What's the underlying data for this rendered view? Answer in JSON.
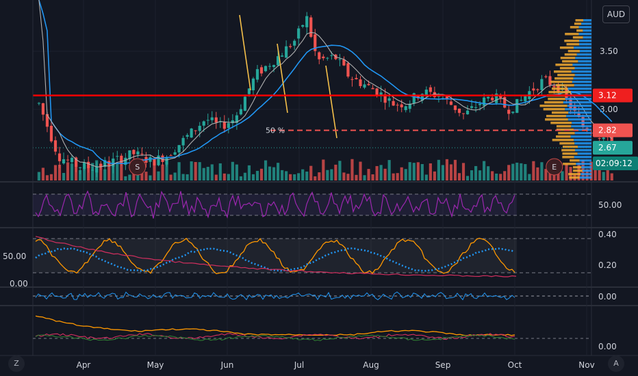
{
  "currency": "AUD",
  "corner_left": "Z",
  "corner_right": "A",
  "ref_label": "50 %",
  "event_markers": [
    {
      "id": "split",
      "text": "S",
      "month_pos": 0.75
    },
    {
      "id": "earnings",
      "text": "E",
      "month_pos": 6.55
    }
  ],
  "badges": {
    "resistance": "3.12",
    "dashed": "2.82",
    "last": "2.67",
    "timer": "02:09:12"
  },
  "colors": {
    "up": "#26a69a",
    "down": "#ef5350",
    "resistance": "#ff0000",
    "ma_blue": "#2196f3",
    "ma_grey": "#b0b0b0",
    "rsi": "#9c27b0",
    "orange": "#ff9800",
    "profile_up": "#2196f3",
    "profile_down": "#f0a830"
  },
  "chart_data": {
    "type": "candlestick",
    "x_ticks": [
      "Apr",
      "May",
      "Jun",
      "Jul",
      "Aug",
      "Sep",
      "Oct",
      "Nov"
    ],
    "price_axis": {
      "ticks": [
        "3.50",
        "3.00"
      ],
      "tick_values": [
        3.5,
        3.0
      ],
      "ylim": [
        2.4,
        3.9
      ]
    },
    "horizontal_levels": [
      {
        "name": "resistance",
        "value": 3.12,
        "style": "solid"
      },
      {
        "name": "retracement-50",
        "value": 2.82,
        "style": "dashed"
      },
      {
        "name": "last-price",
        "value": 2.67,
        "style": "dotted"
      }
    ],
    "price_path": [
      [
        -0.65,
        3.1
      ],
      [
        -0.5,
        2.85
      ],
      [
        -0.35,
        2.6
      ],
      [
        -0.1,
        2.52
      ],
      [
        0.1,
        2.5
      ],
      [
        0.4,
        2.55
      ],
      [
        0.7,
        2.62
      ],
      [
        0.95,
        2.55
      ],
      [
        1.15,
        2.6
      ],
      [
        1.4,
        2.74
      ],
      [
        1.7,
        2.92
      ],
      [
        1.9,
        2.85
      ],
      [
        2.1,
        2.92
      ],
      [
        2.4,
        3.3
      ],
      [
        2.7,
        3.45
      ],
      [
        2.95,
        3.6
      ],
      [
        3.1,
        3.8
      ],
      [
        3.25,
        3.42
      ],
      [
        3.5,
        3.45
      ],
      [
        3.7,
        3.28
      ],
      [
        3.95,
        3.2
      ],
      [
        4.1,
        3.15
      ],
      [
        4.3,
        3.05
      ],
      [
        4.5,
        3.05
      ],
      [
        4.7,
        3.15
      ],
      [
        4.95,
        3.12
      ],
      [
        5.1,
        3.05
      ],
      [
        5.3,
        2.95
      ],
      [
        5.5,
        3.05
      ],
      [
        5.7,
        3.12
      ],
      [
        5.9,
        3.0
      ],
      [
        6.05,
        3.05
      ],
      [
        6.2,
        3.15
      ],
      [
        6.4,
        3.25
      ],
      [
        6.6,
        3.2
      ],
      [
        6.75,
        3.05
      ],
      [
        6.95,
        2.85
      ],
      [
        7.1,
        2.82
      ],
      [
        7.25,
        2.75
      ],
      [
        7.35,
        2.68
      ]
    ],
    "rsi": {
      "ticks": [
        "50.00"
      ],
      "tick_values": [
        50
      ],
      "upper": 70,
      "lower": 30
    },
    "oscillator_left": {
      "ticks": [
        "50.00",
        "0.00"
      ],
      "tick_values": [
        50,
        0
      ]
    },
    "oscillator_right": {
      "ticks": [
        "0.40",
        "0.20"
      ],
      "tick_values": [
        0.4,
        0.2
      ]
    },
    "macd": {
      "ticks": [
        "0.00"
      ],
      "tick_values": [
        0
      ]
    },
    "bottom": {
      "ticks": [
        "0.00"
      ],
      "tick_values": [
        0
      ]
    }
  }
}
